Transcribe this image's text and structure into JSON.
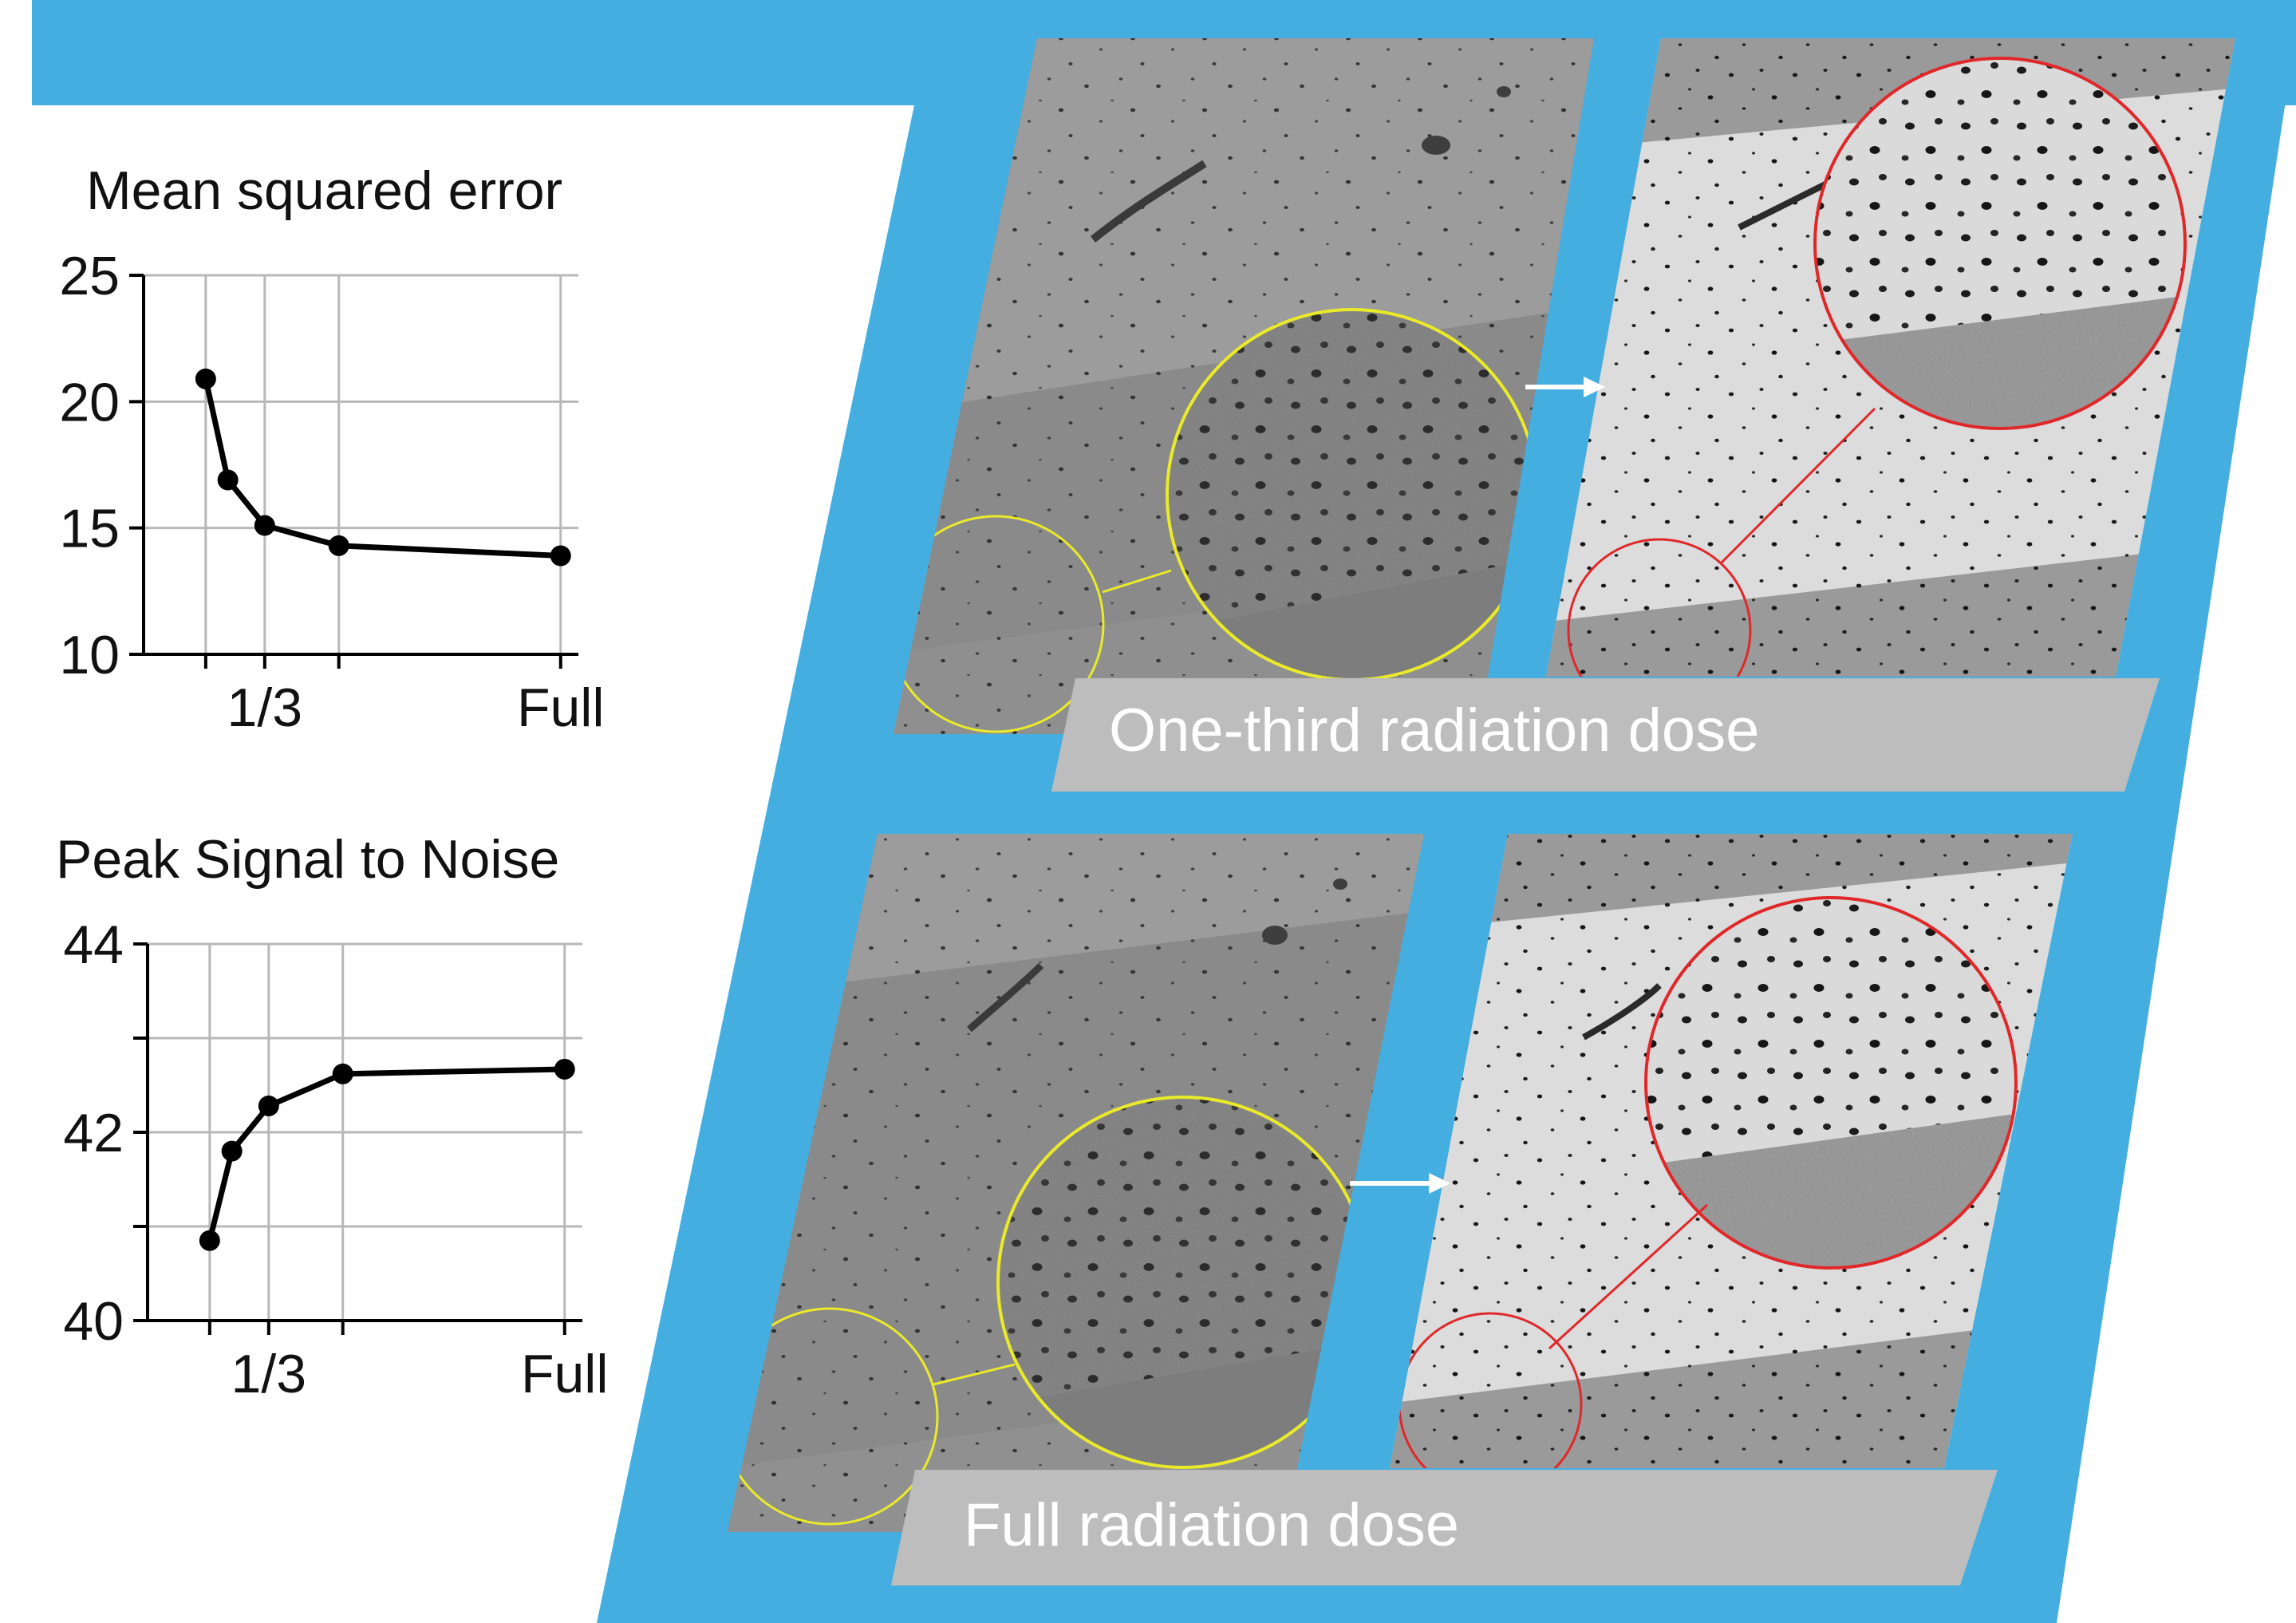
{
  "colors": {
    "accent_blue": "#45aee0",
    "caption_gray": "#bdbdbd",
    "zoom_yellow": "#eaea2a",
    "zoom_red": "#e0282a",
    "line": "#000000",
    "grid": "#b8b8b8"
  },
  "panels": {
    "low_dose": {
      "caption": "One-third radiation dose"
    },
    "full_dose": {
      "caption": "Full radiation dose"
    }
  },
  "chart_data": [
    {
      "type": "line",
      "title": "Mean squared error",
      "ylim": [
        10,
        25
      ],
      "yticks": [
        10,
        15,
        20,
        25
      ],
      "ytick_labels": [
        "10",
        "15",
        "20",
        "25"
      ],
      "xlim": [
        0.06,
        1.04
      ],
      "xticks": [
        0.2,
        0.333,
        0.5,
        1.0
      ],
      "xtick_labels": [
        "",
        "1/3",
        "",
        "Full"
      ],
      "grid": true,
      "x": [
        0.2,
        0.25,
        0.333,
        0.5,
        1.0
      ],
      "series": [
        {
          "values": [
            20.9,
            16.9,
            15.1,
            14.3,
            13.9
          ]
        }
      ]
    },
    {
      "type": "line",
      "title": "Peak Signal to Noise",
      "ylim": [
        40,
        44
      ],
      "yticks": [
        40,
        41,
        42,
        43,
        44
      ],
      "ytick_labels": [
        "40",
        "",
        "42",
        "",
        "44"
      ],
      "xlim": [
        0.06,
        1.04
      ],
      "xticks": [
        0.2,
        0.333,
        0.5,
        1.0
      ],
      "xtick_labels": [
        "",
        "1/3",
        "",
        "Full"
      ],
      "grid": true,
      "x": [
        0.2,
        0.25,
        0.333,
        0.5,
        1.0
      ],
      "series": [
        {
          "values": [
            40.85,
            41.8,
            42.28,
            42.62,
            42.67
          ]
        }
      ]
    }
  ]
}
